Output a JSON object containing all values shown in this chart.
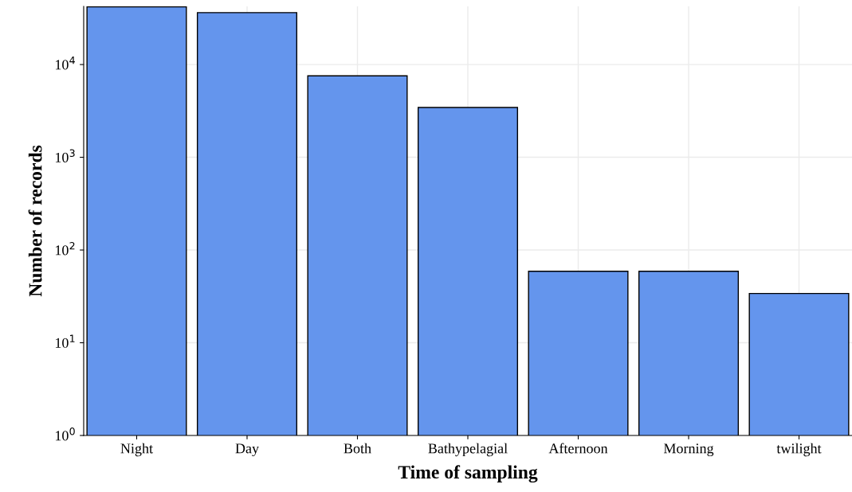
{
  "chart_data": {
    "type": "bar",
    "xlabel": "Time of sampling",
    "ylabel": "Number of records",
    "categories": [
      "Night",
      "Day",
      "Both",
      "Bathypelagial",
      "Afternoon",
      "Morning",
      "twilight"
    ],
    "values": [
      42000,
      36300,
      7560,
      3440,
      59,
      59,
      34
    ],
    "color": "#6495ed",
    "log": "y",
    "ylim": [
      1,
      42400
    ],
    "yticks": [
      {
        "value": 1,
        "label": "10$^{0}$"
      },
      {
        "value": 10,
        "label": "10$^{1}$"
      },
      {
        "value": 100,
        "label": "10$^{2}$"
      },
      {
        "value": 1000,
        "label": "10$^{3}$"
      },
      {
        "value": 10000,
        "label": "10$^{4}$"
      }
    ],
    "grid": true
  }
}
